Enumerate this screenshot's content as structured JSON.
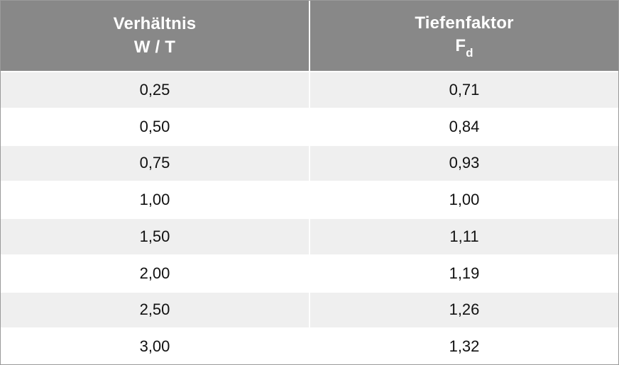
{
  "table": {
    "header_bg": "#888888",
    "header_fg": "#ffffff",
    "row_odd_bg": "#efefef",
    "row_even_bg": "#ffffff",
    "border_color": "#9a9a9a",
    "columns": [
      {
        "line1": "Verhältnis",
        "line2": "W / T"
      },
      {
        "line1": "Tiefenfaktor",
        "line2_prefix": "F",
        "line2_sub": "d"
      }
    ],
    "rows": [
      [
        "0,25",
        "0,71"
      ],
      [
        "0,50",
        "0,84"
      ],
      [
        "0,75",
        "0,93"
      ],
      [
        "1,00",
        "1,00"
      ],
      [
        "1,50",
        "1,11"
      ],
      [
        "2,00",
        "1,19"
      ],
      [
        "2,50",
        "1,26"
      ],
      [
        "3,00",
        "1,32"
      ]
    ]
  }
}
